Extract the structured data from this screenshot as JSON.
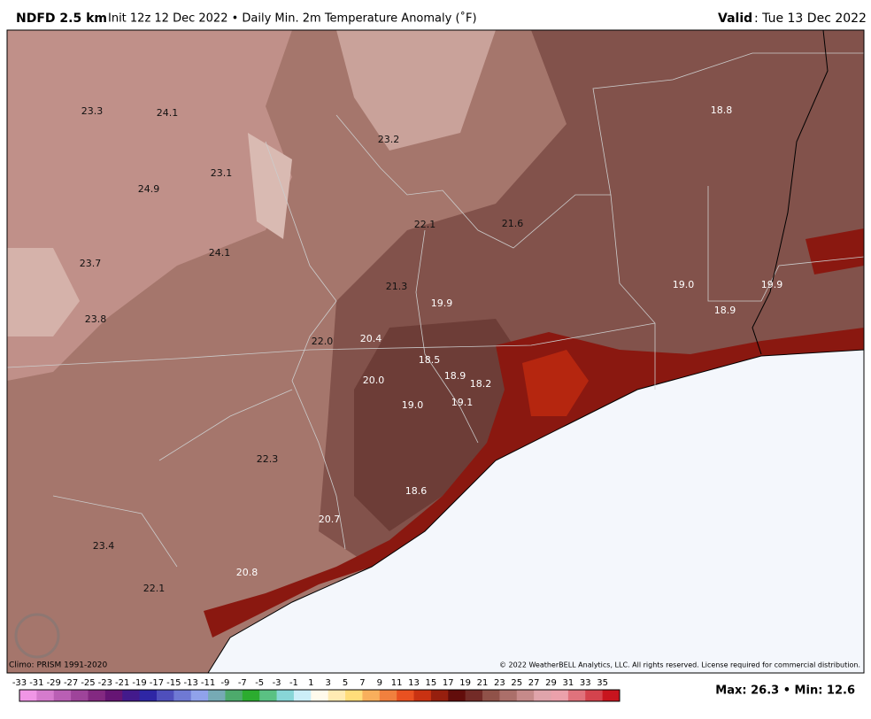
{
  "header": {
    "title_bold": "NDFD 2.5 km",
    "title_rest": "Init 12z 12 Dec 2022 • Daily Min. 2m Temperature Anomaly (˚F)",
    "valid_label": "Valid",
    "valid_value": ": Tue 13 Dec 2022"
  },
  "labels": [
    "23.3",
    "24.1",
    "23.2",
    "18.8",
    "23.1",
    "24.9",
    "22.1",
    "21.6",
    "24.1",
    "23.7",
    "21.3",
    "19.0",
    "19.9",
    "19.9",
    "18.9",
    "23.8",
    "22.0",
    "20.4",
    "18.5",
    "18.9",
    "18.2",
    "20.0",
    "19.0",
    "19.1",
    "22.3",
    "18.6",
    "20.7",
    "23.4",
    "20.8",
    "22.1"
  ],
  "colorbar": {
    "ticks": [
      -33,
      -31,
      -29,
      -27,
      -25,
      -23,
      -21,
      -19,
      -17,
      -15,
      -13,
      -11,
      -9,
      -7,
      -5,
      -3,
      -1,
      1,
      3,
      5,
      7,
      9,
      11,
      13,
      15,
      17,
      19,
      21,
      23,
      25,
      27,
      29,
      31,
      33,
      35
    ]
  },
  "footer": {
    "climo": "Climo: PRISM 1991-2020",
    "copyright": "© 2022 WeatherBELL Analytics, LLC. All rights reserved. License required for commercial distribution.",
    "stats": "Max: 26.3 • Min: 12.6"
  }
}
